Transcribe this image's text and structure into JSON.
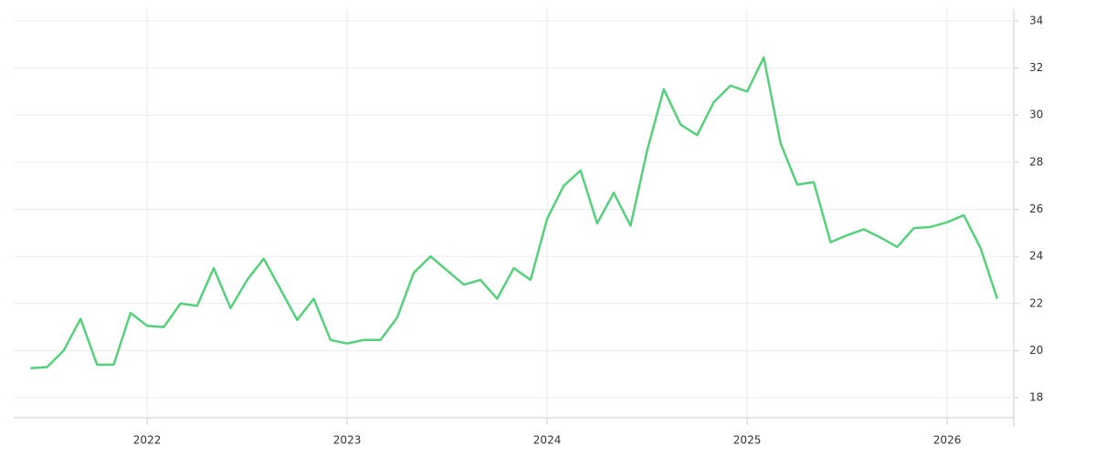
{
  "chart_data": {
    "type": "line",
    "x": [
      2021.417,
      2021.5,
      2021.583,
      2021.667,
      2021.75,
      2021.833,
      2021.917,
      2022,
      2022.083,
      2022.167,
      2022.25,
      2022.333,
      2022.417,
      2022.5,
      2022.583,
      2022.667,
      2022.75,
      2022.833,
      2022.917,
      2023,
      2023.083,
      2023.167,
      2023.25,
      2023.333,
      2023.417,
      2023.5,
      2023.583,
      2023.667,
      2023.75,
      2023.833,
      2023.917,
      2024,
      2024.083,
      2024.167,
      2024.25,
      2024.333,
      2024.417,
      2024.5,
      2024.583,
      2024.667,
      2024.75,
      2024.833,
      2024.917,
      2025,
      2025.083,
      2025.167,
      2025.25,
      2025.333,
      2025.417,
      2025.5,
      2025.583,
      2025.667,
      2025.75,
      2025.833,
      2025.917,
      2026,
      2026.083,
      2026.167,
      2026.25
    ],
    "values": [
      19.25,
      19.3,
      20.0,
      21.35,
      19.4,
      19.4,
      21.6,
      21.05,
      21.0,
      22.0,
      21.9,
      23.5,
      21.8,
      23.0,
      23.9,
      22.6,
      21.3,
      22.2,
      20.45,
      20.3,
      20.45,
      20.45,
      21.4,
      23.3,
      24.0,
      23.4,
      22.8,
      23.0,
      22.2,
      23.5,
      23.0,
      25.6,
      27.0,
      27.65,
      25.4,
      26.7,
      25.3,
      28.5,
      31.1,
      29.6,
      29.15,
      30.55,
      31.25,
      31.0,
      32.45,
      28.8,
      27.05,
      27.15,
      24.6,
      24.9,
      25.15,
      24.8,
      24.4,
      25.2,
      25.25,
      25.45,
      25.75,
      24.35,
      22.2
    ],
    "color": "#55d17c",
    "xlim": [
      2021.333,
      2026.333
    ],
    "xticks": [
      2022,
      2023,
      2024,
      2025,
      2026
    ],
    "ylim": [
      17.15,
      34.5
    ],
    "yticks": [
      18,
      20,
      22,
      24,
      26,
      28,
      30,
      32,
      34
    ],
    "grid": true
  }
}
